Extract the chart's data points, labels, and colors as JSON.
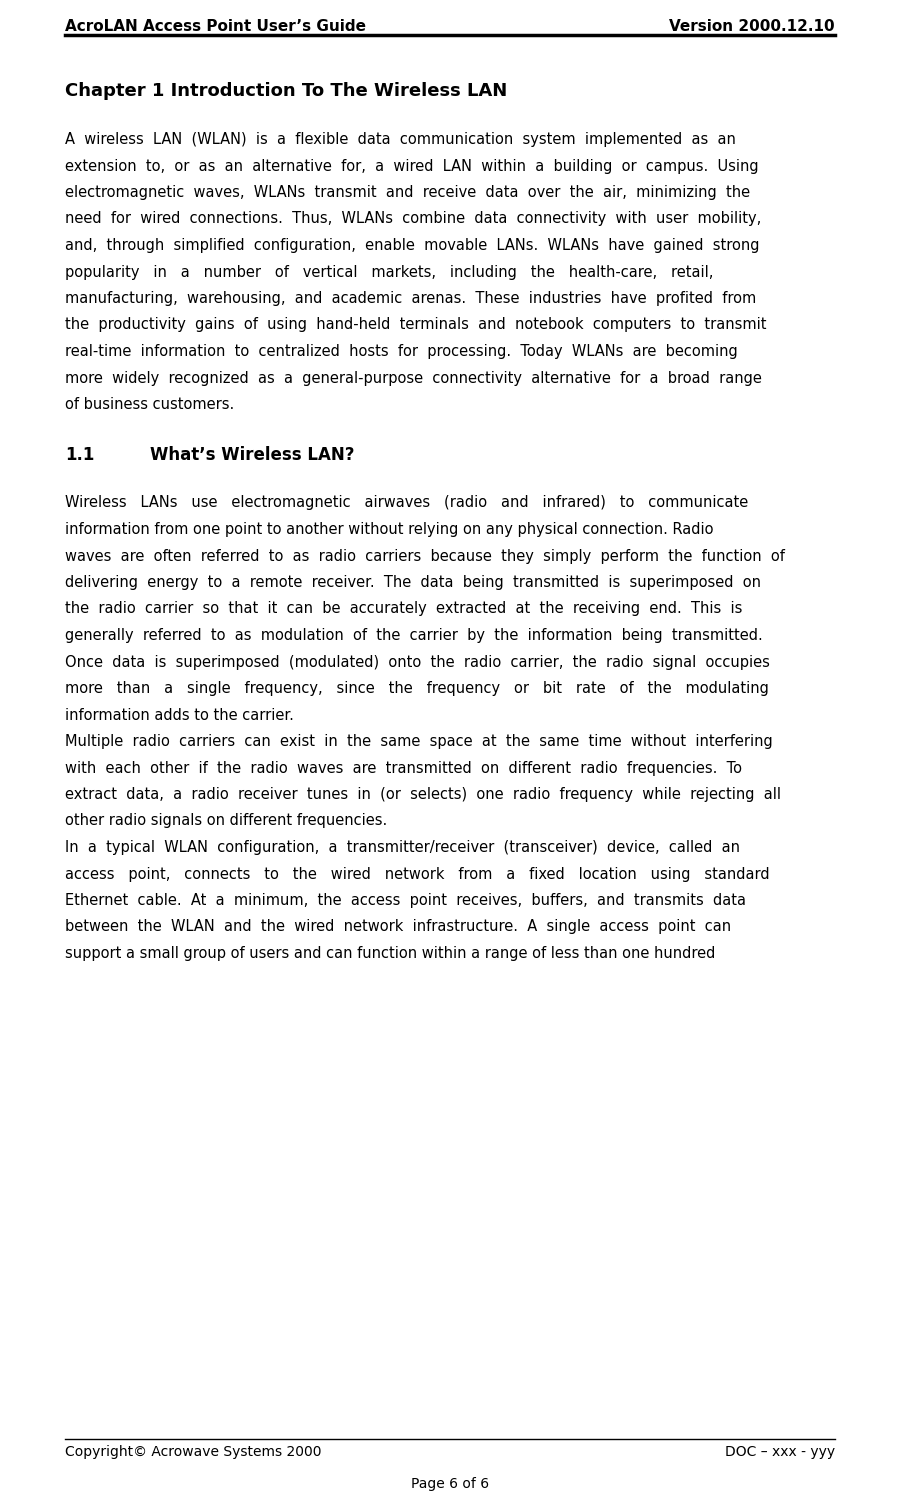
{
  "header_left": "AcroLAN Access Point User’s Guide",
  "header_right": "Version 2000.12.10",
  "footer_left": "Copyright© Acrowave Systems 2000",
  "footer_right": "DOC – xxx - yyy",
  "footer_center": "Page 6 of 6",
  "chapter_title": "Chapter 1 Introduction To The Wireless LAN",
  "section_label": "1.1",
  "section_title": "What’s Wireless LAN?",
  "bg_color": "#ffffff",
  "text_color": "#000000",
  "para1_lines": [
    "A  wireless  LAN  (WLAN)  is  a  flexible  data  communication  system  implemented  as  an",
    "extension  to,  or  as  an  alternative  for,  a  wired  LAN  within  a  building  or  campus.  Using",
    "electromagnetic  waves,  WLANs  transmit  and  receive  data  over  the  air,  minimizing  the",
    "need  for  wired  connections.  Thus,  WLANs  combine  data  connectivity  with  user  mobility,",
    "and,  through  simplified  configuration,  enable  movable  LANs.  WLANs  have  gained  strong",
    "popularity   in   a   number   of   vertical   markets,   including   the   health-care,   retail,",
    "manufacturing,  warehousing,  and  academic  arenas.  These  industries  have  profited  from",
    "the  productivity  gains  of  using  hand-held  terminals  and  notebook  computers  to  transmit",
    "real-time  information  to  centralized  hosts  for  processing.  Today  WLANs  are  becoming",
    "more  widely  recognized  as  a  general-purpose  connectivity  alternative  for  a  broad  range",
    "of business customers."
  ],
  "para2_lines": [
    "Wireless   LANs   use   electromagnetic   airwaves   (radio   and   infrared)   to   communicate",
    "information from one point to another without relying on any physical connection. Radio",
    "waves  are  often  referred  to  as  radio  carriers  because  they  simply  perform  the  function  of",
    "delivering  energy  to  a  remote  receiver.  The  data  being  transmitted  is  superimposed  on",
    "the  radio  carrier  so  that  it  can  be  accurately  extracted  at  the  receiving  end.  This  is",
    "generally  referred  to  as  modulation  of  the  carrier  by  the  information  being  transmitted.",
    "Once  data  is  superimposed  (modulated)  onto  the  radio  carrier,  the  radio  signal  occupies",
    "more   than   a   single   frequency,   since   the   frequency   or   bit   rate   of   the   modulating",
    "information adds to the carrier."
  ],
  "para3_lines": [
    "Multiple  radio  carriers  can  exist  in  the  same  space  at  the  same  time  without  interfering",
    "with  each  other  if  the  radio  waves  are  transmitted  on  different  radio  frequencies.  To",
    "extract  data,  a  radio  receiver  tunes  in  (or  selects)  one  radio  frequency  while  rejecting  all",
    "other radio signals on different frequencies."
  ],
  "para4_lines": [
    "In  a  typical  WLAN  configuration,  a  transmitter/receiver  (transceiver)  device,  called  an",
    "access   point,   connects   to   the   wired   network   from   a   fixed   location   using   standard",
    "Ethernet  cable.  At  a  minimum,  the  access  point  receives,  buffers,  and  transmits  data",
    "between  the  WLAN  and  the  wired  network  infrastructure.  A  single  access  point  can",
    "support a small group of users and can function within a range of less than one hundred"
  ]
}
